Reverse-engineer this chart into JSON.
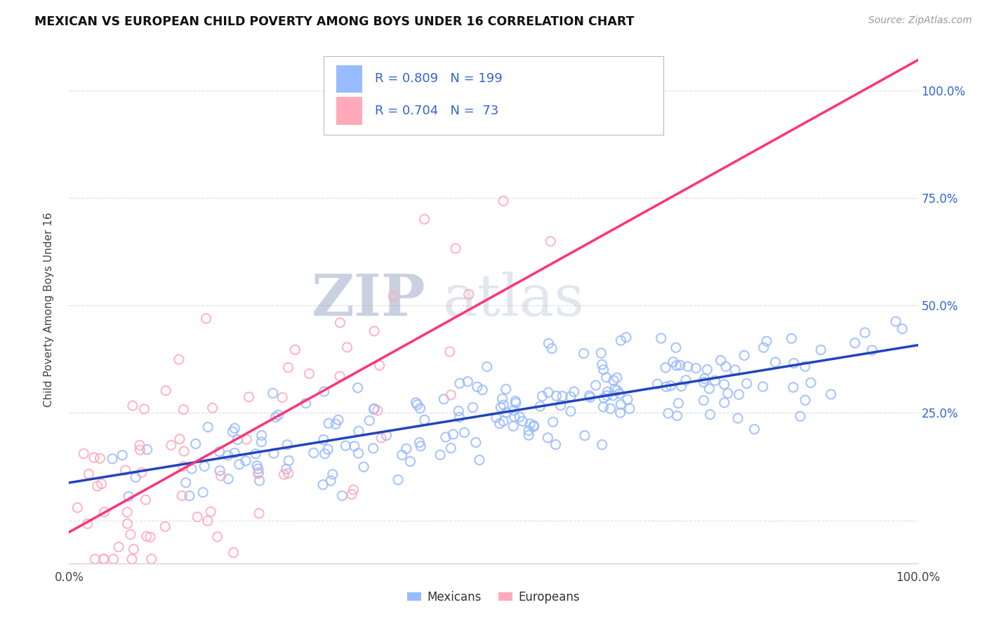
{
  "title": "MEXICAN VS EUROPEAN CHILD POVERTY AMONG BOYS UNDER 16 CORRELATION CHART",
  "source": "Source: ZipAtlas.com",
  "ylabel": "Child Poverty Among Boys Under 16",
  "watermark_zip": "ZIP",
  "watermark_atlas": "atlas",
  "blue_R": 0.809,
  "blue_N": 199,
  "pink_R": 0.704,
  "pink_N": 73,
  "blue_color": "#99bbff",
  "pink_color": "#ffaabb",
  "blue_line_color": "#2244bb",
  "pink_line_color": "#ff3377",
  "background_color": "#ffffff",
  "grid_color": "#dddddd",
  "title_color": "#111111",
  "source_color": "#999999",
  "legend_value_color": "#3366cc",
  "watermark_color": "#c5d5ea",
  "xlim": [
    0,
    1
  ],
  "ylim": [
    -0.1,
    1.08
  ],
  "xticks": [
    0.0,
    0.25,
    0.5,
    0.75,
    1.0
  ],
  "yticks": [
    0.0,
    0.25,
    0.5,
    0.75,
    1.0
  ],
  "xticklabels": [
    "0.0%",
    "",
    "",
    "",
    "100.0%"
  ],
  "yticklabels_right": [
    "",
    "25.0%",
    "50.0%",
    "75.0%",
    "100.0%"
  ],
  "blue_seed": 12,
  "pink_seed": 99
}
